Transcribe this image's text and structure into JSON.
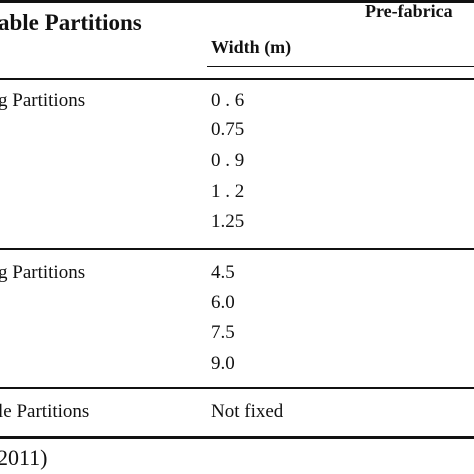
{
  "table": {
    "column_title": "able Partitions",
    "super_header": "Pre-fabrica",
    "sub_header": "Width (m)",
    "groups": [
      {
        "label": "g Partitions",
        "values": [
          "0 . 6",
          "0.75",
          "0 . 9",
          "1 . 2",
          "1.25"
        ]
      },
      {
        "label": "g Partitions",
        "values": [
          "4.5",
          "6.0",
          "7.5",
          "9.0"
        ]
      },
      {
        "label": "le Partitions",
        "values": [
          "Not fixed"
        ]
      }
    ]
  },
  "source_text": "2011)"
}
